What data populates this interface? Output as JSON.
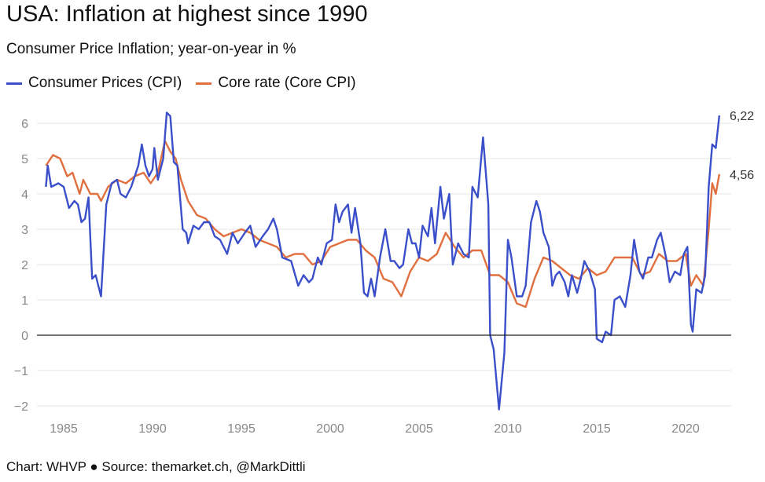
{
  "title": "USA: Inflation at highest since 1990",
  "subtitle": "Consumer Price Inflation; year-on-year in %",
  "footer": "Chart: WHVP ● Source: themarket.ch, @MarkDittli",
  "chart_data": {
    "type": "line",
    "title": "USA: Inflation at highest since 1990",
    "subtitle": "Consumer Price Inflation; year-on-year in %",
    "xlabel": "",
    "ylabel": "",
    "xlim": [
      1984,
      2022
    ],
    "ylim": [
      -2,
      6
    ],
    "xticks": [
      "1985",
      "1990",
      "1995",
      "2000",
      "2005",
      "2010",
      "2015",
      "2020"
    ],
    "yticks": [
      "6",
      "5",
      "4",
      "3",
      "2",
      "1",
      "0",
      "−1",
      "−2"
    ],
    "grid": true,
    "legend": "top-left",
    "series": [
      {
        "name": "Consumer Prices (CPI)",
        "color": "#3a4fc9",
        "end_label": "6,22",
        "points": [
          [
            1984.0,
            4.2
          ],
          [
            1984.1,
            4.8
          ],
          [
            1984.3,
            4.2
          ],
          [
            1984.7,
            4.3
          ],
          [
            1985.0,
            4.2
          ],
          [
            1985.3,
            3.6
          ],
          [
            1985.6,
            3.8
          ],
          [
            1985.8,
            3.7
          ],
          [
            1986.0,
            3.2
          ],
          [
            1986.2,
            3.3
          ],
          [
            1986.4,
            3.9
          ],
          [
            1986.6,
            1.6
          ],
          [
            1986.8,
            1.7
          ],
          [
            1987.1,
            1.1
          ],
          [
            1987.4,
            3.7
          ],
          [
            1987.7,
            4.3
          ],
          [
            1988.0,
            4.4
          ],
          [
            1988.2,
            4.0
          ],
          [
            1988.5,
            3.9
          ],
          [
            1988.8,
            4.2
          ],
          [
            1989.2,
            4.8
          ],
          [
            1989.4,
            5.4
          ],
          [
            1989.6,
            4.8
          ],
          [
            1989.8,
            4.5
          ],
          [
            1990.0,
            4.7
          ],
          [
            1990.1,
            5.3
          ],
          [
            1990.3,
            4.4
          ],
          [
            1990.6,
            5.0
          ],
          [
            1990.8,
            6.3
          ],
          [
            1991.0,
            6.2
          ],
          [
            1991.2,
            4.9
          ],
          [
            1991.4,
            4.8
          ],
          [
            1991.7,
            3.0
          ],
          [
            1991.9,
            2.9
          ],
          [
            1992.0,
            2.6
          ],
          [
            1992.3,
            3.1
          ],
          [
            1992.6,
            3.0
          ],
          [
            1992.9,
            3.2
          ],
          [
            1993.2,
            3.2
          ],
          [
            1993.5,
            2.8
          ],
          [
            1993.8,
            2.7
          ],
          [
            1994.0,
            2.5
          ],
          [
            1994.2,
            2.3
          ],
          [
            1994.5,
            2.9
          ],
          [
            1994.8,
            2.6
          ],
          [
            1995.2,
            2.9
          ],
          [
            1995.5,
            3.1
          ],
          [
            1995.8,
            2.5
          ],
          [
            1996.2,
            2.8
          ],
          [
            1996.5,
            3.0
          ],
          [
            1996.8,
            3.3
          ],
          [
            1997.0,
            3.0
          ],
          [
            1997.3,
            2.2
          ],
          [
            1997.8,
            2.1
          ],
          [
            1998.2,
            1.4
          ],
          [
            1998.5,
            1.7
          ],
          [
            1998.8,
            1.5
          ],
          [
            1999.0,
            1.6
          ],
          [
            1999.3,
            2.2
          ],
          [
            1999.5,
            2.0
          ],
          [
            1999.8,
            2.6
          ],
          [
            2000.1,
            2.7
          ],
          [
            2000.3,
            3.7
          ],
          [
            2000.5,
            3.2
          ],
          [
            2000.7,
            3.5
          ],
          [
            2001.0,
            3.7
          ],
          [
            2001.2,
            2.9
          ],
          [
            2001.4,
            3.6
          ],
          [
            2001.7,
            2.6
          ],
          [
            2001.9,
            1.2
          ],
          [
            2002.1,
            1.1
          ],
          [
            2002.3,
            1.6
          ],
          [
            2002.5,
            1.1
          ],
          [
            2002.8,
            2.2
          ],
          [
            2003.1,
            3.0
          ],
          [
            2003.4,
            2.1
          ],
          [
            2003.6,
            2.1
          ],
          [
            2003.9,
            1.9
          ],
          [
            2004.1,
            2.0
          ],
          [
            2004.4,
            3.0
          ],
          [
            2004.6,
            2.6
          ],
          [
            2004.8,
            2.6
          ],
          [
            2005.0,
            2.2
          ],
          [
            2005.2,
            3.1
          ],
          [
            2005.5,
            2.8
          ],
          [
            2005.7,
            3.6
          ],
          [
            2005.9,
            2.6
          ],
          [
            2006.2,
            4.2
          ],
          [
            2006.4,
            3.3
          ],
          [
            2006.7,
            4.0
          ],
          [
            2006.9,
            2.0
          ],
          [
            2007.2,
            2.6
          ],
          [
            2007.5,
            2.3
          ],
          [
            2007.8,
            2.2
          ],
          [
            2008.0,
            4.2
          ],
          [
            2008.3,
            3.9
          ],
          [
            2008.6,
            5.6
          ],
          [
            2008.9,
            3.7
          ],
          [
            2009.0,
            0.0
          ],
          [
            2009.2,
            -0.4
          ],
          [
            2009.5,
            -2.1
          ],
          [
            2009.8,
            -0.5
          ],
          [
            2010.0,
            2.7
          ],
          [
            2010.2,
            2.2
          ],
          [
            2010.5,
            1.1
          ],
          [
            2010.8,
            1.1
          ],
          [
            2011.0,
            1.4
          ],
          [
            2011.3,
            3.2
          ],
          [
            2011.6,
            3.8
          ],
          [
            2011.8,
            3.5
          ],
          [
            2012.0,
            2.9
          ],
          [
            2012.3,
            2.5
          ],
          [
            2012.5,
            1.4
          ],
          [
            2012.7,
            1.7
          ],
          [
            2012.9,
            1.8
          ],
          [
            2013.2,
            1.5
          ],
          [
            2013.4,
            1.1
          ],
          [
            2013.6,
            1.7
          ],
          [
            2013.9,
            1.2
          ],
          [
            2014.1,
            1.6
          ],
          [
            2014.3,
            2.1
          ],
          [
            2014.6,
            1.8
          ],
          [
            2014.9,
            1.3
          ],
          [
            2015.0,
            -0.1
          ],
          [
            2015.3,
            -0.2
          ],
          [
            2015.5,
            0.1
          ],
          [
            2015.8,
            0.0
          ],
          [
            2016.0,
            1.0
          ],
          [
            2016.3,
            1.1
          ],
          [
            2016.6,
            0.8
          ],
          [
            2016.9,
            1.7
          ],
          [
            2017.1,
            2.7
          ],
          [
            2017.4,
            1.8
          ],
          [
            2017.6,
            1.6
          ],
          [
            2017.9,
            2.2
          ],
          [
            2018.1,
            2.2
          ],
          [
            2018.4,
            2.7
          ],
          [
            2018.6,
            2.9
          ],
          [
            2018.9,
            2.2
          ],
          [
            2019.1,
            1.5
          ],
          [
            2019.4,
            1.8
          ],
          [
            2019.7,
            1.7
          ],
          [
            2019.9,
            2.3
          ],
          [
            2020.1,
            2.5
          ],
          [
            2020.3,
            0.3
          ],
          [
            2020.4,
            0.1
          ],
          [
            2020.6,
            1.3
          ],
          [
            2020.9,
            1.2
          ],
          [
            2021.1,
            1.7
          ],
          [
            2021.3,
            4.2
          ],
          [
            2021.5,
            5.4
          ],
          [
            2021.7,
            5.3
          ],
          [
            2021.9,
            6.22
          ]
        ]
      },
      {
        "name": "Core rate (Core CPI)",
        "color": "#e0703f",
        "end_label": "4,56",
        "points": [
          [
            1984.0,
            4.8
          ],
          [
            1984.4,
            5.1
          ],
          [
            1984.8,
            5.0
          ],
          [
            1985.2,
            4.5
          ],
          [
            1985.5,
            4.6
          ],
          [
            1985.9,
            4.0
          ],
          [
            1986.1,
            4.4
          ],
          [
            1986.5,
            4.0
          ],
          [
            1986.9,
            4.0
          ],
          [
            1987.1,
            3.8
          ],
          [
            1987.5,
            4.2
          ],
          [
            1988.0,
            4.4
          ],
          [
            1988.5,
            4.3
          ],
          [
            1989.0,
            4.5
          ],
          [
            1989.5,
            4.6
          ],
          [
            1989.9,
            4.3
          ],
          [
            1990.3,
            4.6
          ],
          [
            1990.7,
            5.5
          ],
          [
            1991.0,
            5.2
          ],
          [
            1991.3,
            5.0
          ],
          [
            1991.6,
            4.4
          ],
          [
            1992.0,
            3.8
          ],
          [
            1992.5,
            3.4
          ],
          [
            1993.0,
            3.3
          ],
          [
            1993.5,
            3.0
          ],
          [
            1994.0,
            2.8
          ],
          [
            1994.5,
            2.9
          ],
          [
            1995.0,
            3.0
          ],
          [
            1995.5,
            2.9
          ],
          [
            1996.0,
            2.7
          ],
          [
            1996.5,
            2.6
          ],
          [
            1997.0,
            2.5
          ],
          [
            1997.5,
            2.2
          ],
          [
            1998.0,
            2.3
          ],
          [
            1998.5,
            2.3
          ],
          [
            1999.0,
            2.0
          ],
          [
            1999.5,
            2.1
          ],
          [
            2000.0,
            2.5
          ],
          [
            2000.5,
            2.6
          ],
          [
            2001.0,
            2.7
          ],
          [
            2001.5,
            2.7
          ],
          [
            2002.0,
            2.4
          ],
          [
            2002.5,
            2.2
          ],
          [
            2003.0,
            1.6
          ],
          [
            2003.5,
            1.5
          ],
          [
            2004.0,
            1.1
          ],
          [
            2004.5,
            1.8
          ],
          [
            2005.0,
            2.2
          ],
          [
            2005.5,
            2.1
          ],
          [
            2006.0,
            2.3
          ],
          [
            2006.5,
            2.9
          ],
          [
            2007.0,
            2.5
          ],
          [
            2007.5,
            2.2
          ],
          [
            2008.0,
            2.4
          ],
          [
            2008.5,
            2.4
          ],
          [
            2009.0,
            1.7
          ],
          [
            2009.5,
            1.7
          ],
          [
            2010.0,
            1.5
          ],
          [
            2010.5,
            0.9
          ],
          [
            2011.0,
            0.8
          ],
          [
            2011.5,
            1.6
          ],
          [
            2012.0,
            2.2
          ],
          [
            2012.5,
            2.1
          ],
          [
            2013.0,
            1.9
          ],
          [
            2013.5,
            1.7
          ],
          [
            2014.0,
            1.6
          ],
          [
            2014.5,
            1.9
          ],
          [
            2015.0,
            1.7
          ],
          [
            2015.5,
            1.8
          ],
          [
            2016.0,
            2.2
          ],
          [
            2016.5,
            2.2
          ],
          [
            2017.0,
            2.2
          ],
          [
            2017.5,
            1.7
          ],
          [
            2018.0,
            1.8
          ],
          [
            2018.5,
            2.3
          ],
          [
            2019.0,
            2.1
          ],
          [
            2019.5,
            2.1
          ],
          [
            2020.0,
            2.3
          ],
          [
            2020.3,
            1.4
          ],
          [
            2020.6,
            1.7
          ],
          [
            2021.0,
            1.4
          ],
          [
            2021.3,
            3.0
          ],
          [
            2021.5,
            4.3
          ],
          [
            2021.7,
            4.0
          ],
          [
            2021.9,
            4.56
          ]
        ]
      }
    ]
  }
}
